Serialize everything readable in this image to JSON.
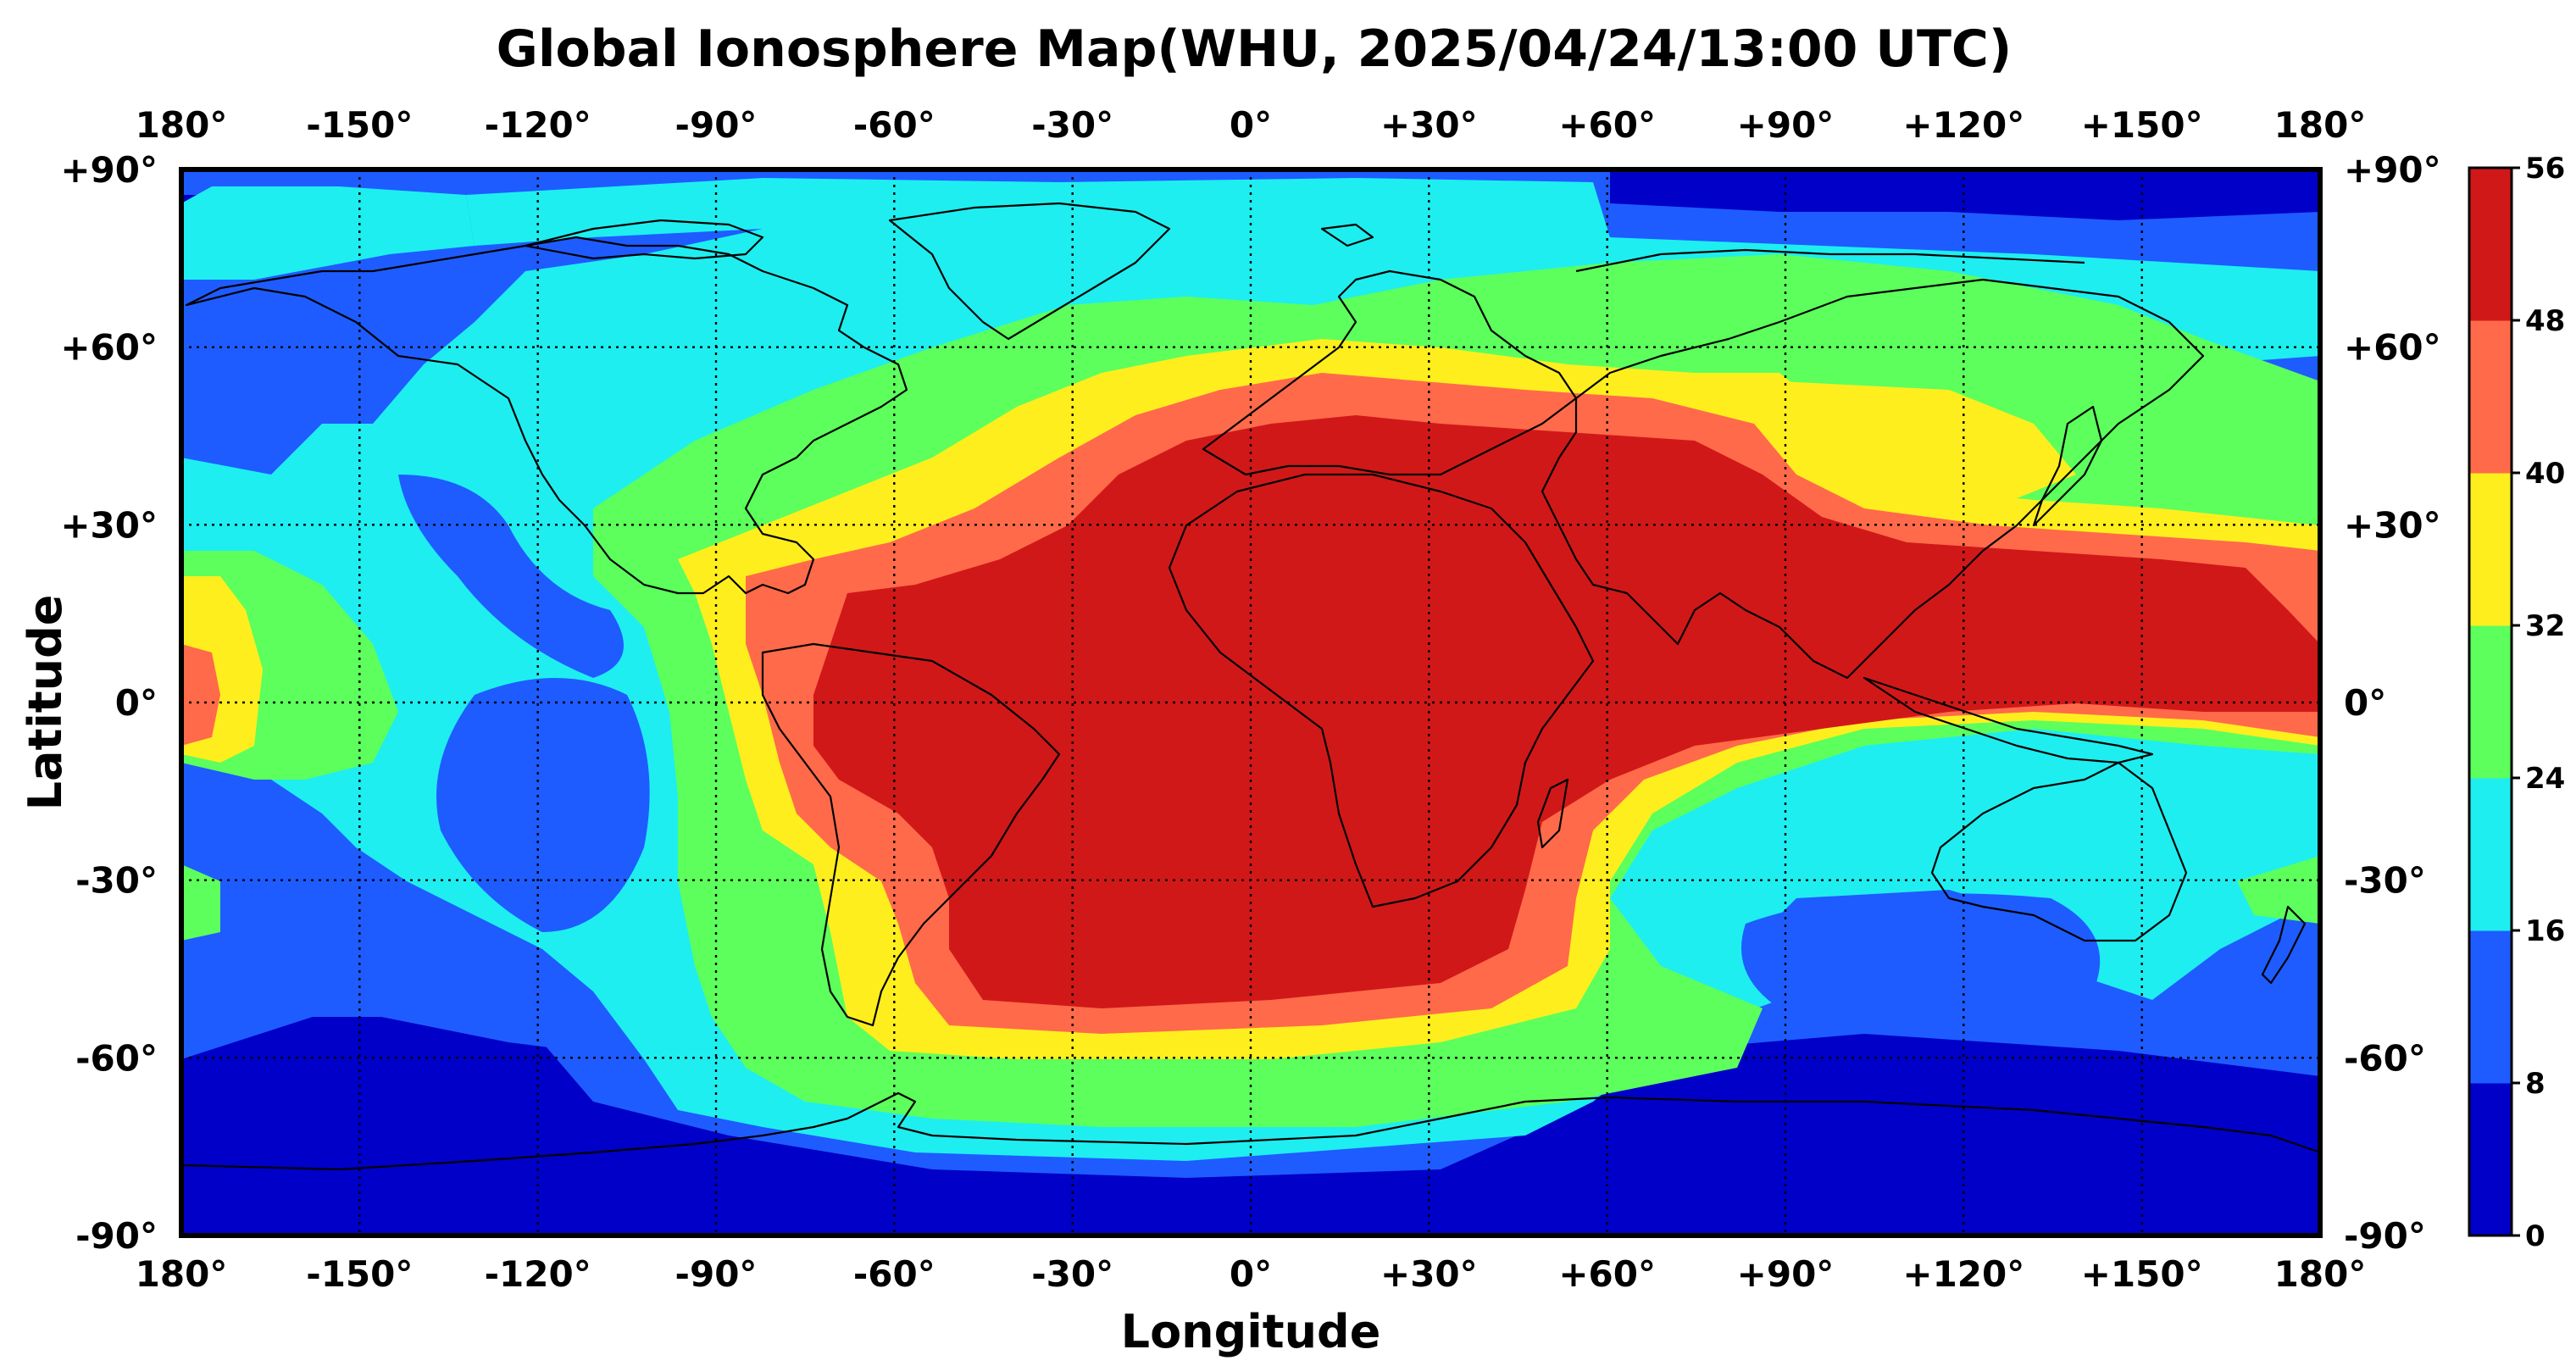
{
  "title": "Global Ionosphere Map(WHU, 2025/04/24/13:00 UTC)",
  "xlabel": "Longitude",
  "ylabel": "Latitude",
  "lon_ticks": [
    "180°",
    "-150°",
    "-120°",
    "-90°",
    "-60°",
    "-30°",
    "0°",
    "+30°",
    "+60°",
    "+90°",
    "+120°",
    "+150°",
    "180°"
  ],
  "lat_ticks": [
    "+90°",
    "+60°",
    "+30°",
    "0°",
    "-30°",
    "-60°",
    "-90°"
  ],
  "colorbar": {
    "ticks": [
      "0",
      "8",
      "16",
      "24",
      "32",
      "40",
      "48",
      "56"
    ],
    "colors": [
      "#0000c8",
      "#1e5cff",
      "#1eeef0",
      "#5cff5c",
      "#ffee1e",
      "#ff6a4a",
      "#d11818"
    ]
  },
  "chart_data": {
    "type": "heatmap",
    "projection": "equirectangular",
    "xlim": [
      -180,
      180
    ],
    "ylim": [
      -90,
      90
    ],
    "levels": [
      0,
      8,
      16,
      24,
      32,
      40,
      48,
      56
    ],
    "grid": true,
    "coastlines": true,
    "regions_note": "level index per contour band (0 = 0-8, 6 = 48-56)"
  }
}
